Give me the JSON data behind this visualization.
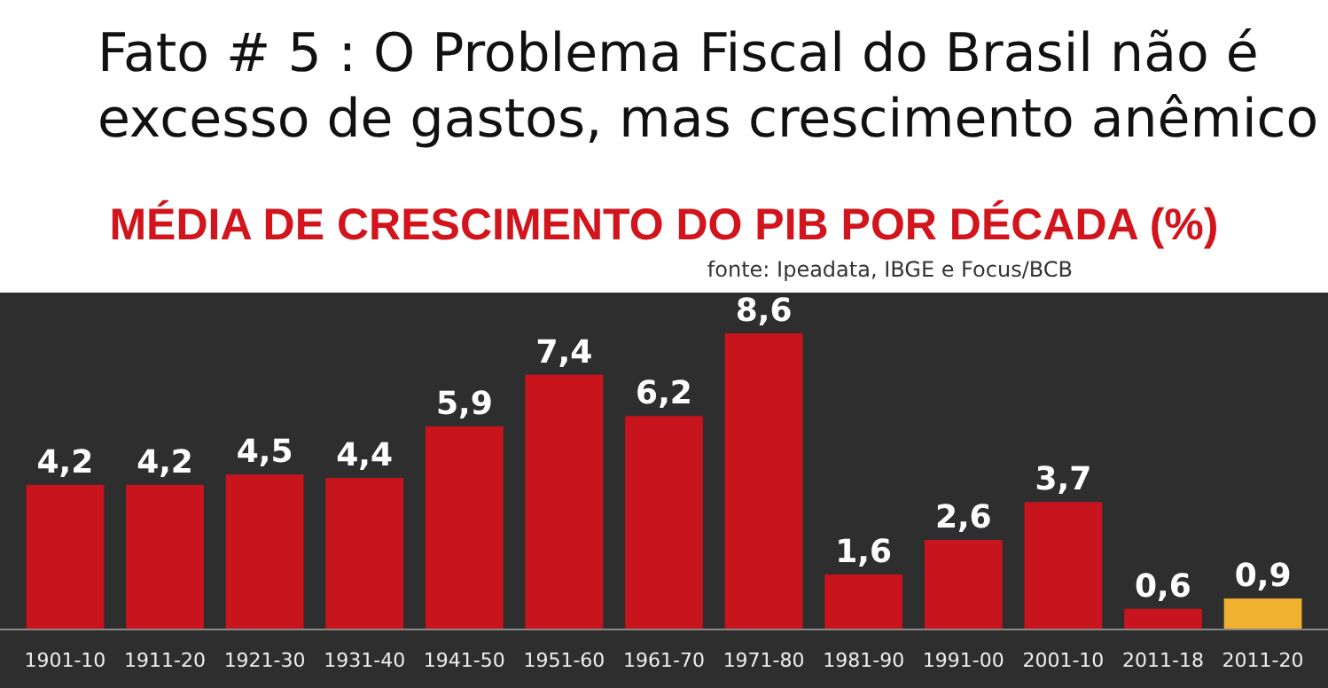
{
  "chart_data": {
    "type": "bar",
    "title": "Fato # 5 : O Problema Fiscal do Brasil não é excesso de gastos, mas crescimento anêmico",
    "subtitle": "MÉDIA DE CRESCIMENTO DO PIB POR DÉCADA (%)",
    "annotations": [
      "fonte: Ipeadata, IBGE e Focus/BCB"
    ],
    "categories": [
      "1901-10",
      "1911-20",
      "1921-30",
      "1931-40",
      "1941-50",
      "1951-60",
      "1961-70",
      "1971-80",
      "1981-90",
      "1991-00",
      "2001-10",
      "2011-18",
      "2011-20"
    ],
    "values": [
      4.2,
      4.2,
      4.5,
      4.4,
      5.9,
      7.4,
      6.2,
      8.6,
      1.6,
      2.6,
      3.7,
      0.6,
      0.9
    ],
    "value_labels": [
      "4,2",
      "4,2",
      "4,5",
      "4,4",
      "5,9",
      "7,4",
      "6,2",
      "8,6",
      "1,6",
      "2,6",
      "3,7",
      "0,6",
      "0,9"
    ],
    "colors": [
      "#c8141c",
      "#c8141c",
      "#c8141c",
      "#c8141c",
      "#c8141c",
      "#c8141c",
      "#c8141c",
      "#c8141c",
      "#c8141c",
      "#c8141c",
      "#c8141c",
      "#c8141c",
      "#f0b030"
    ]
  }
}
